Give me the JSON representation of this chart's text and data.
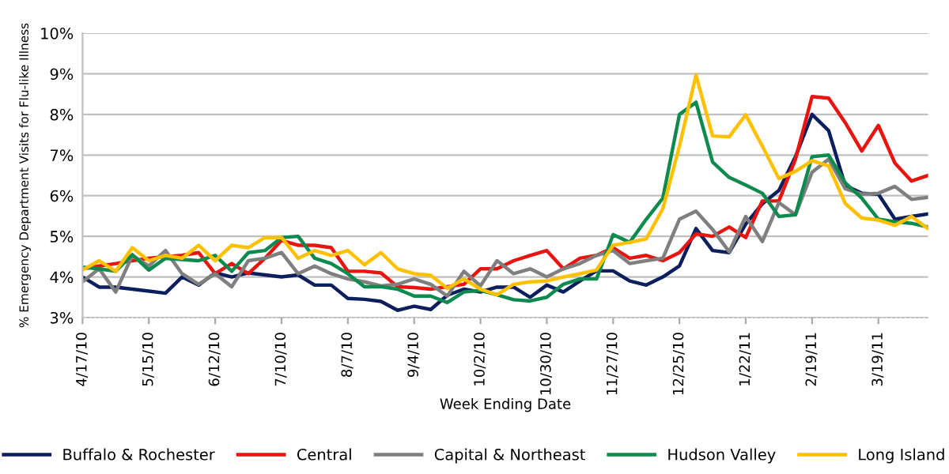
{
  "chart_data": {
    "type": "line",
    "xlabel": "Week Ending Date",
    "ylabel": "% Emergency Department Visits for Flu-like Illness",
    "x": [
      "2010-04-17",
      "2010-04-24",
      "2010-05-01",
      "2010-05-08",
      "2010-05-15",
      "2010-05-22",
      "2010-05-29",
      "2010-06-05",
      "2010-06-12",
      "2010-06-19",
      "2010-06-26",
      "2010-07-03",
      "2010-07-10",
      "2010-07-17",
      "2010-07-24",
      "2010-07-31",
      "2010-08-07",
      "2010-08-14",
      "2010-08-21",
      "2010-08-28",
      "2010-09-04",
      "2010-09-11",
      "2010-09-18",
      "2010-09-25",
      "2010-10-02",
      "2010-10-09",
      "2010-10-16",
      "2010-10-23",
      "2010-10-30",
      "2010-11-06",
      "2010-11-13",
      "2010-11-20",
      "2010-11-27",
      "2010-12-04",
      "2010-12-11",
      "2010-12-18",
      "2010-12-25",
      "2011-01-01",
      "2011-01-08",
      "2011-01-15",
      "2011-01-22",
      "2011-01-29",
      "2011-02-05",
      "2011-02-12",
      "2011-02-19",
      "2011-02-26",
      "2011-03-05",
      "2011-03-12",
      "2011-03-19",
      "2011-03-26",
      "2011-04-02",
      "2011-04-09"
    ],
    "xlim": [
      "2010-04-17",
      "2011-04-09"
    ],
    "xticks": [
      {
        "value": "2010-04-17",
        "label": "4/17/10"
      },
      {
        "value": "2010-05-15",
        "label": "5/15/10"
      },
      {
        "value": "2010-06-12",
        "label": "6/12/10"
      },
      {
        "value": "2010-07-10",
        "label": "7/10/10"
      },
      {
        "value": "2010-08-07",
        "label": "8/7/10"
      },
      {
        "value": "2010-09-04",
        "label": "9/4/10"
      },
      {
        "value": "2010-10-02",
        "label": "10/2/10"
      },
      {
        "value": "2010-10-30",
        "label": "10/30/10"
      },
      {
        "value": "2010-11-27",
        "label": "11/27/10"
      },
      {
        "value": "2010-12-25",
        "label": "12/25/10"
      },
      {
        "value": "2011-01-22",
        "label": "1/22/11"
      },
      {
        "value": "2011-02-19",
        "label": "2/19/11"
      },
      {
        "value": "2011-03-19",
        "label": "3/19/11"
      }
    ],
    "ylim": [
      3,
      10
    ],
    "yticks": [
      {
        "value": 3,
        "label": "3%"
      },
      {
        "value": 4,
        "label": "4%"
      },
      {
        "value": 5,
        "label": "5%"
      },
      {
        "value": 6,
        "label": "6%"
      },
      {
        "value": 7,
        "label": "7%"
      },
      {
        "value": 8,
        "label": "8%"
      },
      {
        "value": 9,
        "label": "9%"
      },
      {
        "value": 10,
        "label": "10%"
      }
    ],
    "grid": "y",
    "legend": "bottom",
    "marker": "none",
    "line_style": "solid",
    "series": [
      {
        "name": "Buffalo & Rochester",
        "color": "#0b1f5c",
        "values": [
          4.0,
          3.75,
          3.75,
          3.7,
          3.65,
          3.6,
          4.0,
          3.8,
          4.1,
          4.0,
          4.1,
          4.05,
          4.0,
          4.05,
          3.8,
          3.8,
          3.47,
          3.45,
          3.4,
          3.18,
          3.28,
          3.2,
          3.55,
          3.7,
          3.63,
          3.75,
          3.75,
          3.5,
          3.8,
          3.63,
          3.9,
          4.15,
          4.15,
          3.9,
          3.8,
          4.0,
          4.27,
          5.19,
          4.65,
          4.6,
          5.3,
          5.8,
          6.13,
          6.96,
          8.0,
          7.6,
          6.25,
          6.06,
          6.04,
          5.42,
          5.49,
          5.55
        ]
      },
      {
        "name": "Central",
        "color": "#e8140f",
        "values": [
          4.2,
          4.27,
          4.33,
          4.4,
          4.46,
          4.5,
          4.53,
          4.6,
          4.08,
          4.33,
          4.08,
          4.46,
          4.9,
          4.78,
          4.78,
          4.72,
          4.14,
          4.14,
          4.1,
          3.76,
          3.74,
          3.7,
          3.76,
          3.82,
          4.2,
          4.2,
          4.4,
          4.53,
          4.65,
          4.2,
          4.46,
          4.53,
          4.72,
          4.46,
          4.53,
          4.4,
          4.6,
          5.06,
          5.0,
          5.23,
          4.97,
          5.87,
          5.87,
          6.9,
          8.44,
          8.4,
          7.8,
          7.1,
          7.73,
          6.8,
          6.36,
          6.5
        ]
      },
      {
        "name": "Capital & Northeast",
        "color": "#7f7f7f",
        "values": [
          3.88,
          4.2,
          3.63,
          4.53,
          4.27,
          4.65,
          4.08,
          3.82,
          4.08,
          3.76,
          4.4,
          4.46,
          4.6,
          4.08,
          4.27,
          4.08,
          3.95,
          3.88,
          3.78,
          3.82,
          3.95,
          3.82,
          3.53,
          4.14,
          3.78,
          4.4,
          4.08,
          4.2,
          4.0,
          4.2,
          4.33,
          4.53,
          4.65,
          4.33,
          4.4,
          4.46,
          5.42,
          5.62,
          5.17,
          4.62,
          5.49,
          4.87,
          5.83,
          5.53,
          6.58,
          6.9,
          6.17,
          6.04,
          6.06,
          6.23,
          5.91,
          5.96
        ]
      },
      {
        "name": "Hudson Valley",
        "color": "#0e8a4f",
        "values": [
          4.24,
          4.2,
          4.14,
          4.55,
          4.17,
          4.46,
          4.43,
          4.4,
          4.53,
          4.14,
          4.6,
          4.65,
          4.97,
          5.0,
          4.46,
          4.33,
          4.08,
          3.76,
          3.76,
          3.7,
          3.53,
          3.53,
          3.37,
          3.63,
          3.67,
          3.56,
          3.44,
          3.41,
          3.5,
          3.82,
          3.95,
          3.95,
          5.04,
          4.85,
          5.42,
          5.94,
          8.0,
          8.3,
          6.83,
          6.45,
          6.26,
          6.06,
          5.49,
          5.53,
          6.96,
          7.0,
          6.32,
          5.94,
          5.42,
          5.36,
          5.32,
          5.23
        ]
      },
      {
        "name": "Long Island",
        "color": "#ffc000",
        "values": [
          4.17,
          4.4,
          4.14,
          4.72,
          4.4,
          4.53,
          4.46,
          4.78,
          4.4,
          4.78,
          4.72,
          4.97,
          4.97,
          4.46,
          4.65,
          4.53,
          4.65,
          4.3,
          4.6,
          4.2,
          4.08,
          4.04,
          3.72,
          3.95,
          3.7,
          3.56,
          3.82,
          3.88,
          3.9,
          4.0,
          4.08,
          4.17,
          4.78,
          4.85,
          4.94,
          5.68,
          7.22,
          8.97,
          7.47,
          7.45,
          7.99,
          7.22,
          6.42,
          6.6,
          6.86,
          6.73,
          5.81,
          5.45,
          5.4,
          5.27,
          5.49,
          5.19
        ]
      }
    ]
  }
}
